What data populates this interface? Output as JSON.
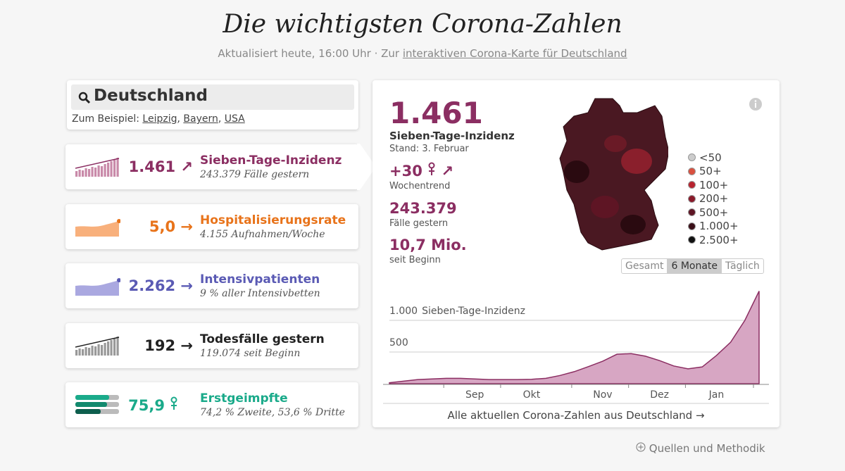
{
  "header": {
    "title": "Die wichtigsten Corona-Zahlen",
    "updated": "Aktualisiert heute, 16:00 Uhr · Zur",
    "link": "interaktiven Corona-Karte für Deutschland"
  },
  "search": {
    "value": "Deutschland",
    "examples_label": "Zum Beispiel:",
    "examples": [
      "Leipzig",
      "Bayern",
      "USA"
    ],
    "separator": ","
  },
  "cards": [
    {
      "value": "1.461",
      "trend": "↗",
      "title": "Sieben-Tage-Inzidenz",
      "subtitle": "243.379 Fälle gestern",
      "color": "#8b2e62"
    },
    {
      "value": "5,0",
      "trend": "→",
      "title": "Hospitalisierungsrate",
      "subtitle": "4.155 Aufnahmen/Woche",
      "color": "#e8731a"
    },
    {
      "value": "2.262",
      "trend": "→",
      "title": "Intensivpatienten",
      "subtitle": "9 % aller Intensivbetten",
      "color": "#5a5ab4"
    },
    {
      "value": "192",
      "trend": "→",
      "title": "Todesfälle gestern",
      "subtitle": "119.074 seit Beginn",
      "color": "#222222"
    },
    {
      "value": "75,9",
      "title": "Erstgeimpfte",
      "subtitle": "74,2 % Zweite, 53,6 % Dritte",
      "color": "#1aaa8a"
    }
  ],
  "detail": {
    "value": "1.461",
    "label": "Sieben-Tage-Inzidenz",
    "date": "Stand: 3. Februar",
    "trend_value": "+30",
    "trend": "↗",
    "trend_label": "Wochentrend",
    "cases": "243.379",
    "cases_label": "Fälle gestern",
    "total": "10,7 Mio.",
    "total_label": "seit Beginn"
  },
  "map_legend": [
    {
      "label": "<50",
      "color": "#cccccc"
    },
    {
      "label": "50+",
      "color": "#d9503f"
    },
    {
      "label": "100+",
      "color": "#b8232f"
    },
    {
      "label": "200+",
      "color": "#8a1a2a"
    },
    {
      "label": "500+",
      "color": "#5e1524"
    },
    {
      "label": "1.000+",
      "color": "#3a0f18"
    },
    {
      "label": "2.500+",
      "color": "#111111"
    }
  ],
  "buttons": [
    {
      "label": "Gesamt",
      "active": false
    },
    {
      "label": "6 Monate",
      "active": true
    },
    {
      "label": "Täglich",
      "active": false
    }
  ],
  "chart_data": {
    "type": "area",
    "ylabel": "Sieben-Tage-Inzidenz",
    "color": "#8b2e62",
    "fill": "#d7a6c3",
    "categories": [
      null,
      null,
      null,
      null,
      null,
      null,
      "Sep",
      null,
      null,
      null,
      "Okt",
      null,
      null,
      null,
      null,
      "Nov",
      null,
      null,
      null,
      "Dez",
      null,
      null,
      null,
      "Jan",
      null,
      null,
      null
    ],
    "values": [
      15,
      40,
      65,
      75,
      85,
      85,
      75,
      65,
      65,
      65,
      70,
      85,
      130,
      190,
      270,
      355,
      465,
      475,
      435,
      365,
      280,
      235,
      265,
      445,
      655,
      1000,
      1461
    ],
    "ylim": [
      0,
      1500
    ],
    "yticks": [
      500,
      {
        "value": 1000,
        "label": "1.000"
      }
    ],
    "grid": true
  },
  "footer": {
    "link": "Alle aktuellen Corona-Zahlen aus Deutschland →",
    "sources": "Quellen und Methodik"
  }
}
